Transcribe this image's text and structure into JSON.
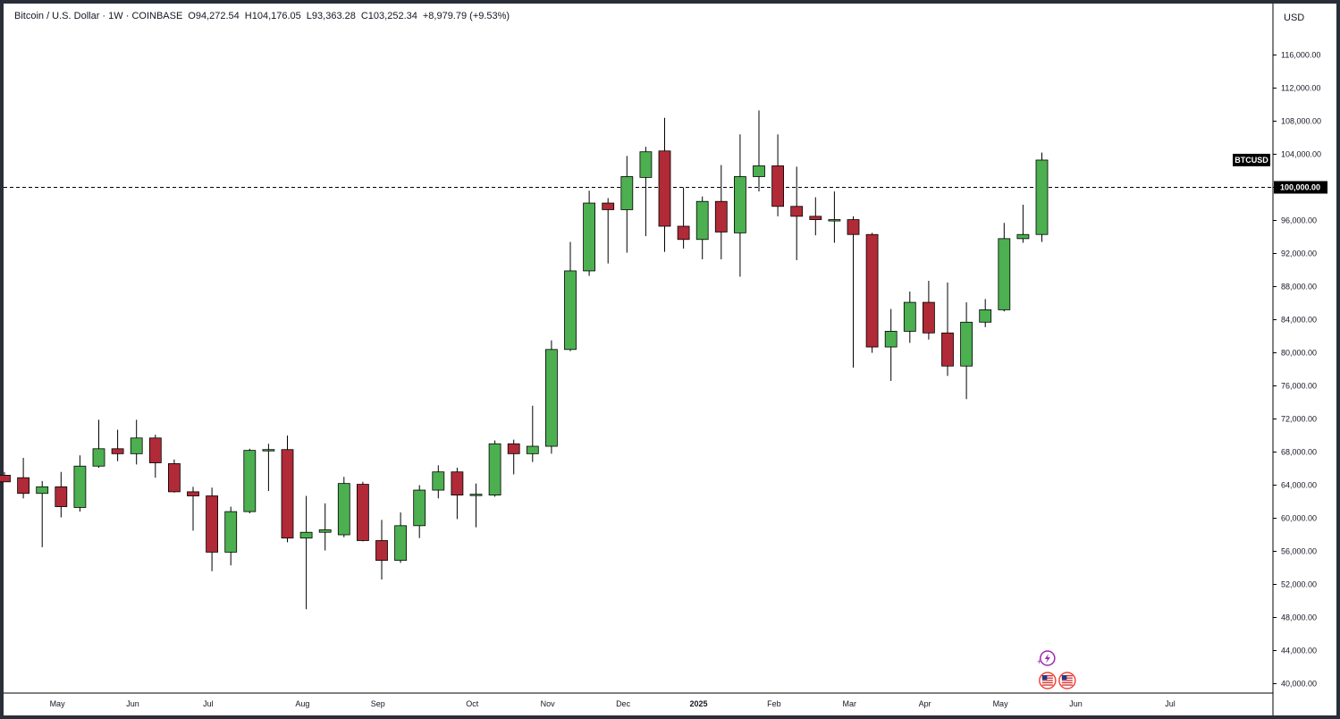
{
  "header": {
    "symbol": "Bitcoin / U.S. Dollar",
    "interval": "1W",
    "exchange": "COINBASE",
    "open": "O94,272.54",
    "high": "H104,176.05",
    "low": "L93,363.28",
    "close": "C103,252.34",
    "change": "+8,979.79 (+9.53%)"
  },
  "currency": "USD",
  "colors": {
    "up": "#4caf50",
    "down": "#b02a37",
    "outline": "#000000",
    "grid": "#e0e3eb"
  },
  "chart_data": {
    "type": "candlestick",
    "y_ticks": [
      "116,000.00",
      "112,000.00",
      "108,000.00",
      "104,000.00",
      "100,000.00",
      "96,000.00",
      "92,000.00",
      "88,000.00",
      "84,000.00",
      "80,000.00",
      "76,000.00",
      "72,000.00",
      "68,000.00",
      "64,000.00",
      "60,000.00",
      "56,000.00",
      "52,000.00",
      "48,000.00",
      "44,000.00",
      "40,000.00"
    ],
    "ylim": [
      38000,
      120000
    ],
    "x_labels": [
      "May",
      "Jun",
      "Jul",
      "Aug",
      "Sep",
      "Oct",
      "Nov",
      "Dec",
      "2025",
      "Feb",
      "Mar",
      "Apr",
      "May",
      "Jun",
      "Jul"
    ],
    "x_label_bold": "2025",
    "x_label_week_index": [
      2.8,
      6.8,
      10.8,
      15.8,
      19.8,
      24.8,
      28.8,
      32.8,
      36.8,
      40.8,
      44.8,
      48.8,
      52.8,
      56.8,
      61.8
    ],
    "price_line": {
      "value": 100000,
      "label": "100,000.00"
    },
    "symbol_tag": "BTCUSD",
    "candles": [
      {
        "o": 65200,
        "h": 65600,
        "l": 64400,
        "c": 64400
      },
      {
        "o": 64900,
        "h": 67300,
        "l": 62400,
        "c": 63000
      },
      {
        "o": 63000,
        "h": 64500,
        "l": 56500,
        "c": 63800
      },
      {
        "o": 63800,
        "h": 65600,
        "l": 60100,
        "c": 61400
      },
      {
        "o": 61300,
        "h": 67600,
        "l": 60800,
        "c": 66300
      },
      {
        "o": 66300,
        "h": 71900,
        "l": 66100,
        "c": 68400
      },
      {
        "o": 68400,
        "h": 70700,
        "l": 66900,
        "c": 67800
      },
      {
        "o": 67800,
        "h": 71900,
        "l": 66500,
        "c": 69700
      },
      {
        "o": 69700,
        "h": 70100,
        "l": 64900,
        "c": 66700
      },
      {
        "o": 66600,
        "h": 67100,
        "l": 63100,
        "c": 63200
      },
      {
        "o": 63200,
        "h": 63800,
        "l": 58500,
        "c": 62700
      },
      {
        "o": 62700,
        "h": 63700,
        "l": 53600,
        "c": 55900
      },
      {
        "o": 55900,
        "h": 61400,
        "l": 54300,
        "c": 60800
      },
      {
        "o": 60800,
        "h": 68400,
        "l": 60600,
        "c": 68200
      },
      {
        "o": 68200,
        "h": 69000,
        "l": 63300,
        "c": 68300
      },
      {
        "o": 68300,
        "h": 70000,
        "l": 57100,
        "c": 57600
      },
      {
        "o": 57600,
        "h": 62700,
        "l": 49000,
        "c": 58300
      },
      {
        "o": 58300,
        "h": 61800,
        "l": 56100,
        "c": 58600
      },
      {
        "o": 58000,
        "h": 65000,
        "l": 57700,
        "c": 64200
      },
      {
        "o": 64100,
        "h": 64400,
        "l": 57200,
        "c": 57300
      },
      {
        "o": 57300,
        "h": 59800,
        "l": 52600,
        "c": 54900
      },
      {
        "o": 54900,
        "h": 60700,
        "l": 54600,
        "c": 59100
      },
      {
        "o": 59100,
        "h": 64000,
        "l": 57600,
        "c": 63400
      },
      {
        "o": 63400,
        "h": 66400,
        "l": 62400,
        "c": 65600
      },
      {
        "o": 65600,
        "h": 66100,
        "l": 59900,
        "c": 62800
      },
      {
        "o": 62800,
        "h": 64200,
        "l": 58900,
        "c": 62900
      },
      {
        "o": 62800,
        "h": 69400,
        "l": 62600,
        "c": 69000
      },
      {
        "o": 69000,
        "h": 69500,
        "l": 65300,
        "c": 67800
      },
      {
        "o": 67800,
        "h": 73600,
        "l": 66800,
        "c": 68700
      },
      {
        "o": 68700,
        "h": 81500,
        "l": 67800,
        "c": 80400
      },
      {
        "o": 80400,
        "h": 93400,
        "l": 80200,
        "c": 89900
      },
      {
        "o": 89900,
        "h": 99600,
        "l": 89300,
        "c": 98100
      },
      {
        "o": 98100,
        "h": 98700,
        "l": 90800,
        "c": 97300
      },
      {
        "o": 97300,
        "h": 103800,
        "l": 92100,
        "c": 101300
      },
      {
        "o": 101200,
        "h": 104900,
        "l": 94100,
        "c": 104300
      },
      {
        "o": 104400,
        "h": 108400,
        "l": 92200,
        "c": 95300
      },
      {
        "o": 95300,
        "h": 100000,
        "l": 92600,
        "c": 93700
      },
      {
        "o": 93700,
        "h": 98900,
        "l": 91300,
        "c": 98300
      },
      {
        "o": 98300,
        "h": 102700,
        "l": 91300,
        "c": 94600
      },
      {
        "o": 94500,
        "h": 106400,
        "l": 89200,
        "c": 101300
      },
      {
        "o": 101300,
        "h": 109300,
        "l": 99500,
        "c": 102600
      },
      {
        "o": 102600,
        "h": 106400,
        "l": 96500,
        "c": 97700
      },
      {
        "o": 97700,
        "h": 102500,
        "l": 91200,
        "c": 96500
      },
      {
        "o": 96500,
        "h": 98800,
        "l": 94200,
        "c": 96100
      },
      {
        "o": 96100,
        "h": 99500,
        "l": 93300,
        "c": 96100
      },
      {
        "o": 96100,
        "h": 96500,
        "l": 78200,
        "c": 94300
      },
      {
        "o": 94300,
        "h": 94500,
        "l": 80000,
        "c": 80700
      },
      {
        "o": 80700,
        "h": 85300,
        "l": 76600,
        "c": 82600
      },
      {
        "o": 82600,
        "h": 87400,
        "l": 81200,
        "c": 86100
      },
      {
        "o": 86100,
        "h": 88700,
        "l": 81600,
        "c": 82400
      },
      {
        "o": 82400,
        "h": 88500,
        "l": 77200,
        "c": 78400
      },
      {
        "o": 78400,
        "h": 86100,
        "l": 74400,
        "c": 83700
      },
      {
        "o": 83700,
        "h": 86500,
        "l": 83100,
        "c": 85200
      },
      {
        "o": 85200,
        "h": 95700,
        "l": 85000,
        "c": 93800
      },
      {
        "o": 93800,
        "h": 97900,
        "l": 93300,
        "c": 94300
      },
      {
        "o": 94300,
        "h": 104200,
        "l": 93400,
        "c": 103300
      }
    ]
  }
}
